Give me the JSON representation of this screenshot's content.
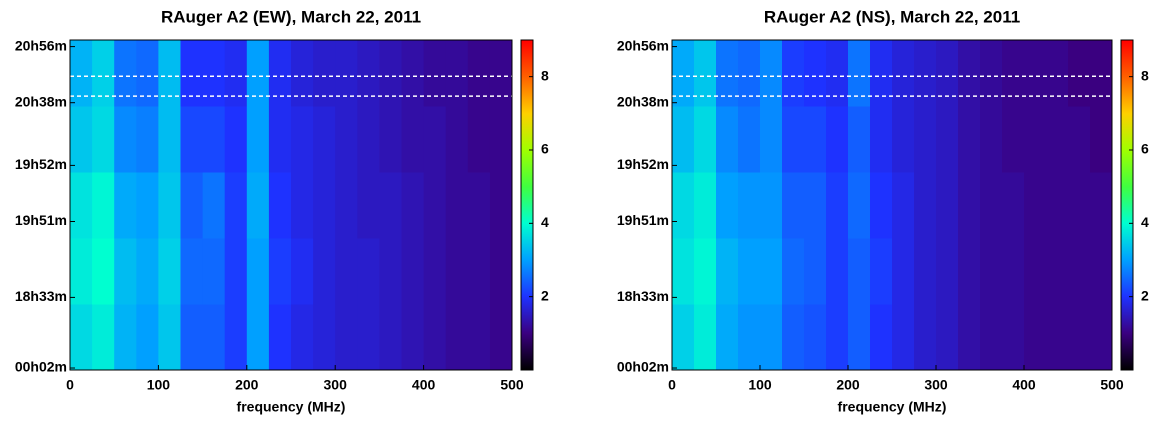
{
  "chart_data": [
    {
      "type": "heatmap",
      "title": "RAuger A2 (EW), March 22, 2011",
      "xlabel": "frequency (MHz)",
      "xlim": [
        0,
        500
      ],
      "xticks": [
        0,
        100,
        200,
        300,
        400,
        500
      ],
      "ylim": [
        0,
        100
      ],
      "yticks": [
        {
          "value": 0.6,
          "label": "00h02m"
        },
        {
          "value": 22,
          "label": "18h33m"
        },
        {
          "value": 45,
          "label": "19h51m"
        },
        {
          "value": 62,
          "label": "19h52m"
        },
        {
          "value": 81,
          "label": "20h38m"
        },
        {
          "value": 98,
          "label": "20h56m"
        }
      ],
      "markers": [
        89,
        83
      ],
      "x_bins": [
        0,
        25,
        50,
        75,
        100,
        125,
        150,
        175,
        200,
        225,
        250,
        275,
        300,
        325,
        350,
        375,
        400,
        425,
        450,
        475,
        500
      ],
      "y_bins": [
        0,
        20,
        40,
        60,
        80,
        100
      ],
      "z": [
        [
          3.6,
          3.8,
          3.2,
          3.0,
          3.4,
          2.4,
          2.4,
          2.1,
          3.0,
          2.0,
          1.8,
          1.7,
          1.6,
          1.6,
          1.5,
          1.4,
          1.3,
          1.2,
          1.2,
          1.1
        ],
        [
          3.8,
          4.0,
          3.3,
          3.1,
          3.5,
          2.5,
          2.5,
          2.1,
          3.0,
          2.1,
          1.9,
          1.7,
          1.6,
          1.6,
          1.5,
          1.4,
          1.3,
          1.2,
          1.2,
          1.1
        ],
        [
          3.7,
          3.9,
          3.1,
          3.0,
          3.4,
          2.4,
          2.6,
          2.1,
          3.1,
          2.0,
          1.8,
          1.7,
          1.6,
          1.5,
          1.5,
          1.4,
          1.3,
          1.2,
          1.2,
          1.1
        ],
        [
          3.4,
          3.6,
          2.8,
          2.7,
          3.3,
          2.2,
          2.2,
          2.0,
          3.0,
          1.9,
          1.8,
          1.7,
          1.6,
          1.5,
          1.4,
          1.3,
          1.3,
          1.2,
          1.1,
          1.1
        ],
        [
          3.2,
          3.5,
          2.6,
          2.5,
          3.3,
          2.0,
          2.0,
          1.9,
          3.0,
          1.9,
          1.7,
          1.6,
          1.6,
          1.5,
          1.4,
          1.3,
          1.2,
          1.2,
          1.1,
          1.1
        ]
      ],
      "zlim": [
        0,
        9
      ],
      "zticks": [
        2,
        4,
        6,
        8
      ],
      "colors": [
        "#000000",
        "#3a0080",
        "#1e32ff",
        "#00a0ff",
        "#00ffd0",
        "#40ff40",
        "#a0ff00",
        "#ffd000",
        "#ff6000",
        "#ff0000"
      ]
    },
    {
      "type": "heatmap",
      "title": "RAuger A2 (NS), March 22, 2011",
      "xlabel": "frequency (MHz)",
      "xlim": [
        0,
        500
      ],
      "xticks": [
        0,
        100,
        200,
        300,
        400,
        500
      ],
      "ylim": [
        0,
        100
      ],
      "yticks": [
        {
          "value": 0.6,
          "label": "00h02m"
        },
        {
          "value": 22,
          "label": "18h33m"
        },
        {
          "value": 45,
          "label": "19h51m"
        },
        {
          "value": 62,
          "label": "19h52m"
        },
        {
          "value": 81,
          "label": "20h38m"
        },
        {
          "value": 98,
          "label": "20h56m"
        }
      ],
      "markers": [
        89,
        83
      ],
      "x_bins": [
        0,
        25,
        50,
        75,
        100,
        125,
        150,
        175,
        200,
        225,
        250,
        275,
        300,
        325,
        350,
        375,
        400,
        425,
        450,
        475,
        500
      ],
      "y_bins": [
        0,
        20,
        40,
        60,
        80,
        100
      ],
      "z": [
        [
          3.5,
          3.8,
          3.1,
          2.9,
          2.9,
          2.4,
          2.3,
          2.1,
          2.4,
          2.0,
          1.8,
          1.6,
          1.5,
          1.3,
          1.2,
          1.2,
          1.1,
          1.1,
          1.1,
          1.1
        ],
        [
          3.7,
          3.9,
          3.2,
          3.0,
          3.0,
          2.5,
          2.4,
          2.1,
          2.4,
          2.1,
          1.8,
          1.6,
          1.5,
          1.3,
          1.2,
          1.2,
          1.1,
          1.1,
          1.1,
          1.1
        ],
        [
          3.6,
          3.8,
          3.0,
          2.9,
          2.9,
          2.4,
          2.4,
          2.1,
          2.5,
          2.0,
          1.8,
          1.6,
          1.5,
          1.3,
          1.2,
          1.2,
          1.1,
          1.1,
          1.1,
          1.1
        ],
        [
          3.3,
          3.6,
          2.8,
          2.6,
          2.8,
          2.2,
          2.2,
          2.0,
          2.4,
          1.9,
          1.7,
          1.6,
          1.5,
          1.3,
          1.2,
          1.1,
          1.1,
          1.1,
          1.1,
          1.0
        ],
        [
          3.1,
          3.4,
          2.6,
          2.5,
          2.8,
          2.1,
          2.0,
          1.9,
          2.6,
          1.9,
          1.7,
          1.6,
          1.5,
          1.3,
          1.2,
          1.1,
          1.1,
          1.1,
          1.0,
          1.0
        ]
      ],
      "zlim": [
        0,
        9
      ],
      "zticks": [
        2,
        4,
        6,
        8
      ],
      "colors": [
        "#000000",
        "#3a0080",
        "#1e32ff",
        "#00a0ff",
        "#00ffd0",
        "#40ff40",
        "#a0ff00",
        "#ffd000",
        "#ff6000",
        "#ff0000"
      ]
    }
  ]
}
